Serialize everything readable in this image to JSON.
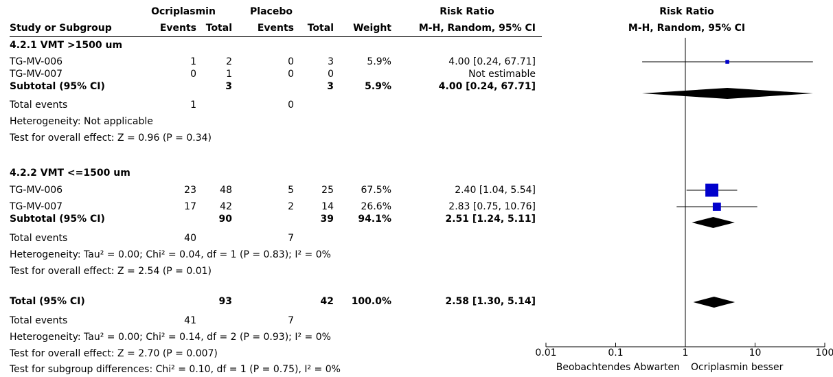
{
  "header": {
    "group1": "Ocriplasmin",
    "group2": "Placebo",
    "effect_title": "Risk Ratio",
    "plot_title": "Risk Ratio",
    "col_study": "Study or Subgroup",
    "col_events1": "Events",
    "col_total1": "Total",
    "col_events2": "Events",
    "col_total2": "Total",
    "col_weight": "Weight",
    "col_method": "M-H, Random, 95% CI",
    "plot_method": "M-H, Random, 95% CI"
  },
  "subgroups": [
    {
      "title": "4.2.1 VMT >1500 um",
      "studies": [
        {
          "name": "TG-MV-006",
          "e1": "1",
          "n1": "2",
          "e2": "0",
          "n2": "3",
          "weight": "5.9%",
          "ci": "4.00 [0.24, 67.71]"
        },
        {
          "name": "TG-MV-007",
          "e1": "0",
          "n1": "1",
          "e2": "0",
          "n2": "0",
          "weight": "",
          "ci": "Not estimable"
        }
      ],
      "subtotal": {
        "label": "Subtotal (95% CI)",
        "n1": "3",
        "n2": "3",
        "weight": "5.9%",
        "ci": "4.00 [0.24, 67.71]"
      },
      "total_events": {
        "label": "Total events",
        "e1": "1",
        "e2": "0"
      },
      "heterogeneity": "Heterogeneity: Not applicable",
      "overall_effect": "Test for overall effect: Z = 0.96 (P = 0.34)"
    },
    {
      "title": "4.2.2 VMT <=1500 um",
      "studies": [
        {
          "name": "TG-MV-006",
          "e1": "23",
          "n1": "48",
          "e2": "5",
          "n2": "25",
          "weight": "67.5%",
          "ci": "2.40 [1.04, 5.54]"
        },
        {
          "name": "TG-MV-007",
          "e1": "17",
          "n1": "42",
          "e2": "2",
          "n2": "14",
          "weight": "26.6%",
          "ci": "2.83 [0.75, 10.76]"
        }
      ],
      "subtotal": {
        "label": "Subtotal (95% CI)",
        "n1": "90",
        "n2": "39",
        "weight": "94.1%",
        "ci": "2.51 [1.24, 5.11]"
      },
      "total_events": {
        "label": "Total events",
        "e1": "40",
        "e2": "7"
      },
      "heterogeneity": "Heterogeneity: Tau² = 0.00; Chi² = 0.04, df = 1 (P = 0.83); I² = 0%",
      "overall_effect": "Test for overall effect: Z = 2.54 (P = 0.01)"
    }
  ],
  "total": {
    "label": "Total (95% CI)",
    "n1": "93",
    "n2": "42",
    "weight": "100.0%",
    "ci": "2.58 [1.30, 5.14]",
    "events_label": "Total events",
    "e1": "41",
    "e2": "7",
    "heterogeneity": "Heterogeneity: Tau² = 0.00; Chi² = 0.14, df = 2 (P = 0.93); I² = 0%",
    "overall_effect": "Test for overall effect: Z = 2.70 (P = 0.007)",
    "subgroup_diff": "Test for subgroup differences: Chi² = 0.10, df = 1 (P = 0.75), I² = 0%"
  },
  "chart_data": {
    "type": "forest",
    "scale": "log",
    "xlim": [
      0.01,
      100
    ],
    "ticks": [
      0.01,
      0.1,
      1,
      10,
      100
    ],
    "tick_labels": [
      "0.01",
      "0.1",
      "1",
      "10",
      "100"
    ],
    "left_label": "Beobachtendes Abwarten",
    "right_label": "Ocriplasmin besser",
    "colors": {
      "study": "#0000cc",
      "diamond": "#000000",
      "line": "#000000"
    },
    "points": [
      {
        "label": "TG-MV-006 (4.2.1)",
        "est": 4.0,
        "lo": 0.24,
        "hi": 67.71,
        "weight": 5.9
      },
      {
        "label": "TG-MV-006 (4.2.2)",
        "est": 2.4,
        "lo": 1.04,
        "hi": 5.54,
        "weight": 67.5
      },
      {
        "label": "TG-MV-007 (4.2.2)",
        "est": 2.83,
        "lo": 0.75,
        "hi": 10.76,
        "weight": 26.6
      }
    ],
    "diamonds": [
      {
        "label": "Subtotal 4.2.1",
        "est": 4.0,
        "lo": 0.24,
        "hi": 67.71
      },
      {
        "label": "Subtotal 4.2.2",
        "est": 2.51,
        "lo": 1.24,
        "hi": 5.11
      },
      {
        "label": "Total",
        "est": 2.58,
        "lo": 1.3,
        "hi": 5.14
      }
    ]
  }
}
